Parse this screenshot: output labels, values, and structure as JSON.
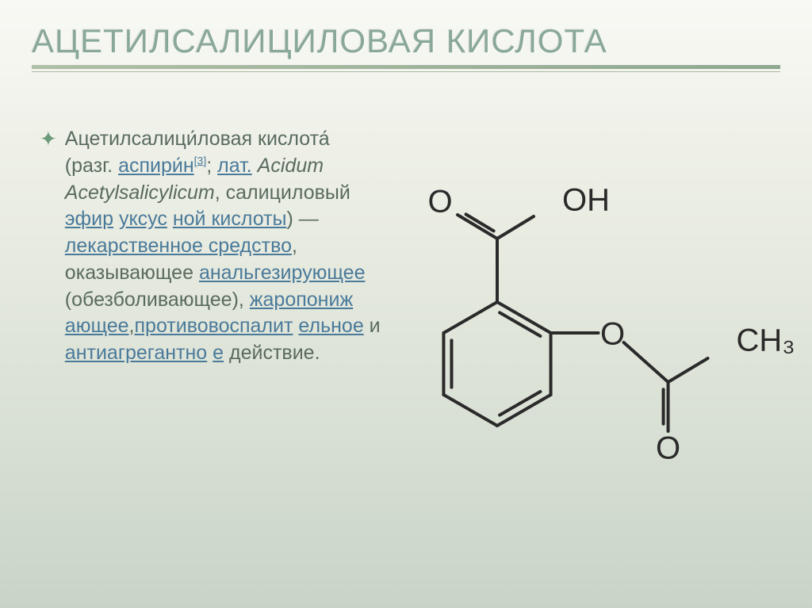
{
  "title": "АЦЕТИЛСАЛИЦИЛОВАЯ КИСЛОТА",
  "body": {
    "lead1": "Ацетилсалици́ловая",
    "lead2": "кислота́ (разг. ",
    "aspirin": "аспири́н",
    "sup": "[3]",
    "semi": ";",
    "lat": "лат.",
    "latin_name": " Acidum Acetylsalicylicum",
    "comma_tail": ", салициловый ",
    "ether": "эфир",
    "sp": " ",
    "vinegar1": "уксус",
    "vinegar2": "ной кислоты",
    "paren": ") —",
    "drug1": " лекарственное средство",
    "rendering": ", оказывающее ",
    "analg": "анальгезирующее",
    "obez": " (обезболивающее), ",
    "zharo1": "жаропониж",
    "zharo2": "ающее",
    "comma2": ",",
    "anti1": "противовоспалит",
    "anti2": "ельное",
    "and": " и ",
    "agg1": "антиагрегантно",
    "agg2": "е",
    "action": " действие."
  },
  "molecule": {
    "labels": {
      "O1": "O",
      "O2": "O",
      "O3": "O",
      "OH": "OH",
      "CH3": "CH₃"
    },
    "stroke": "#2a2a2a",
    "stroke_width": 4,
    "font_size": 40
  },
  "colors": {
    "title": "#8aa89a",
    "text": "#5a6b5e",
    "link": "#4a7a9a",
    "bullet": "#6b9b7a"
  }
}
